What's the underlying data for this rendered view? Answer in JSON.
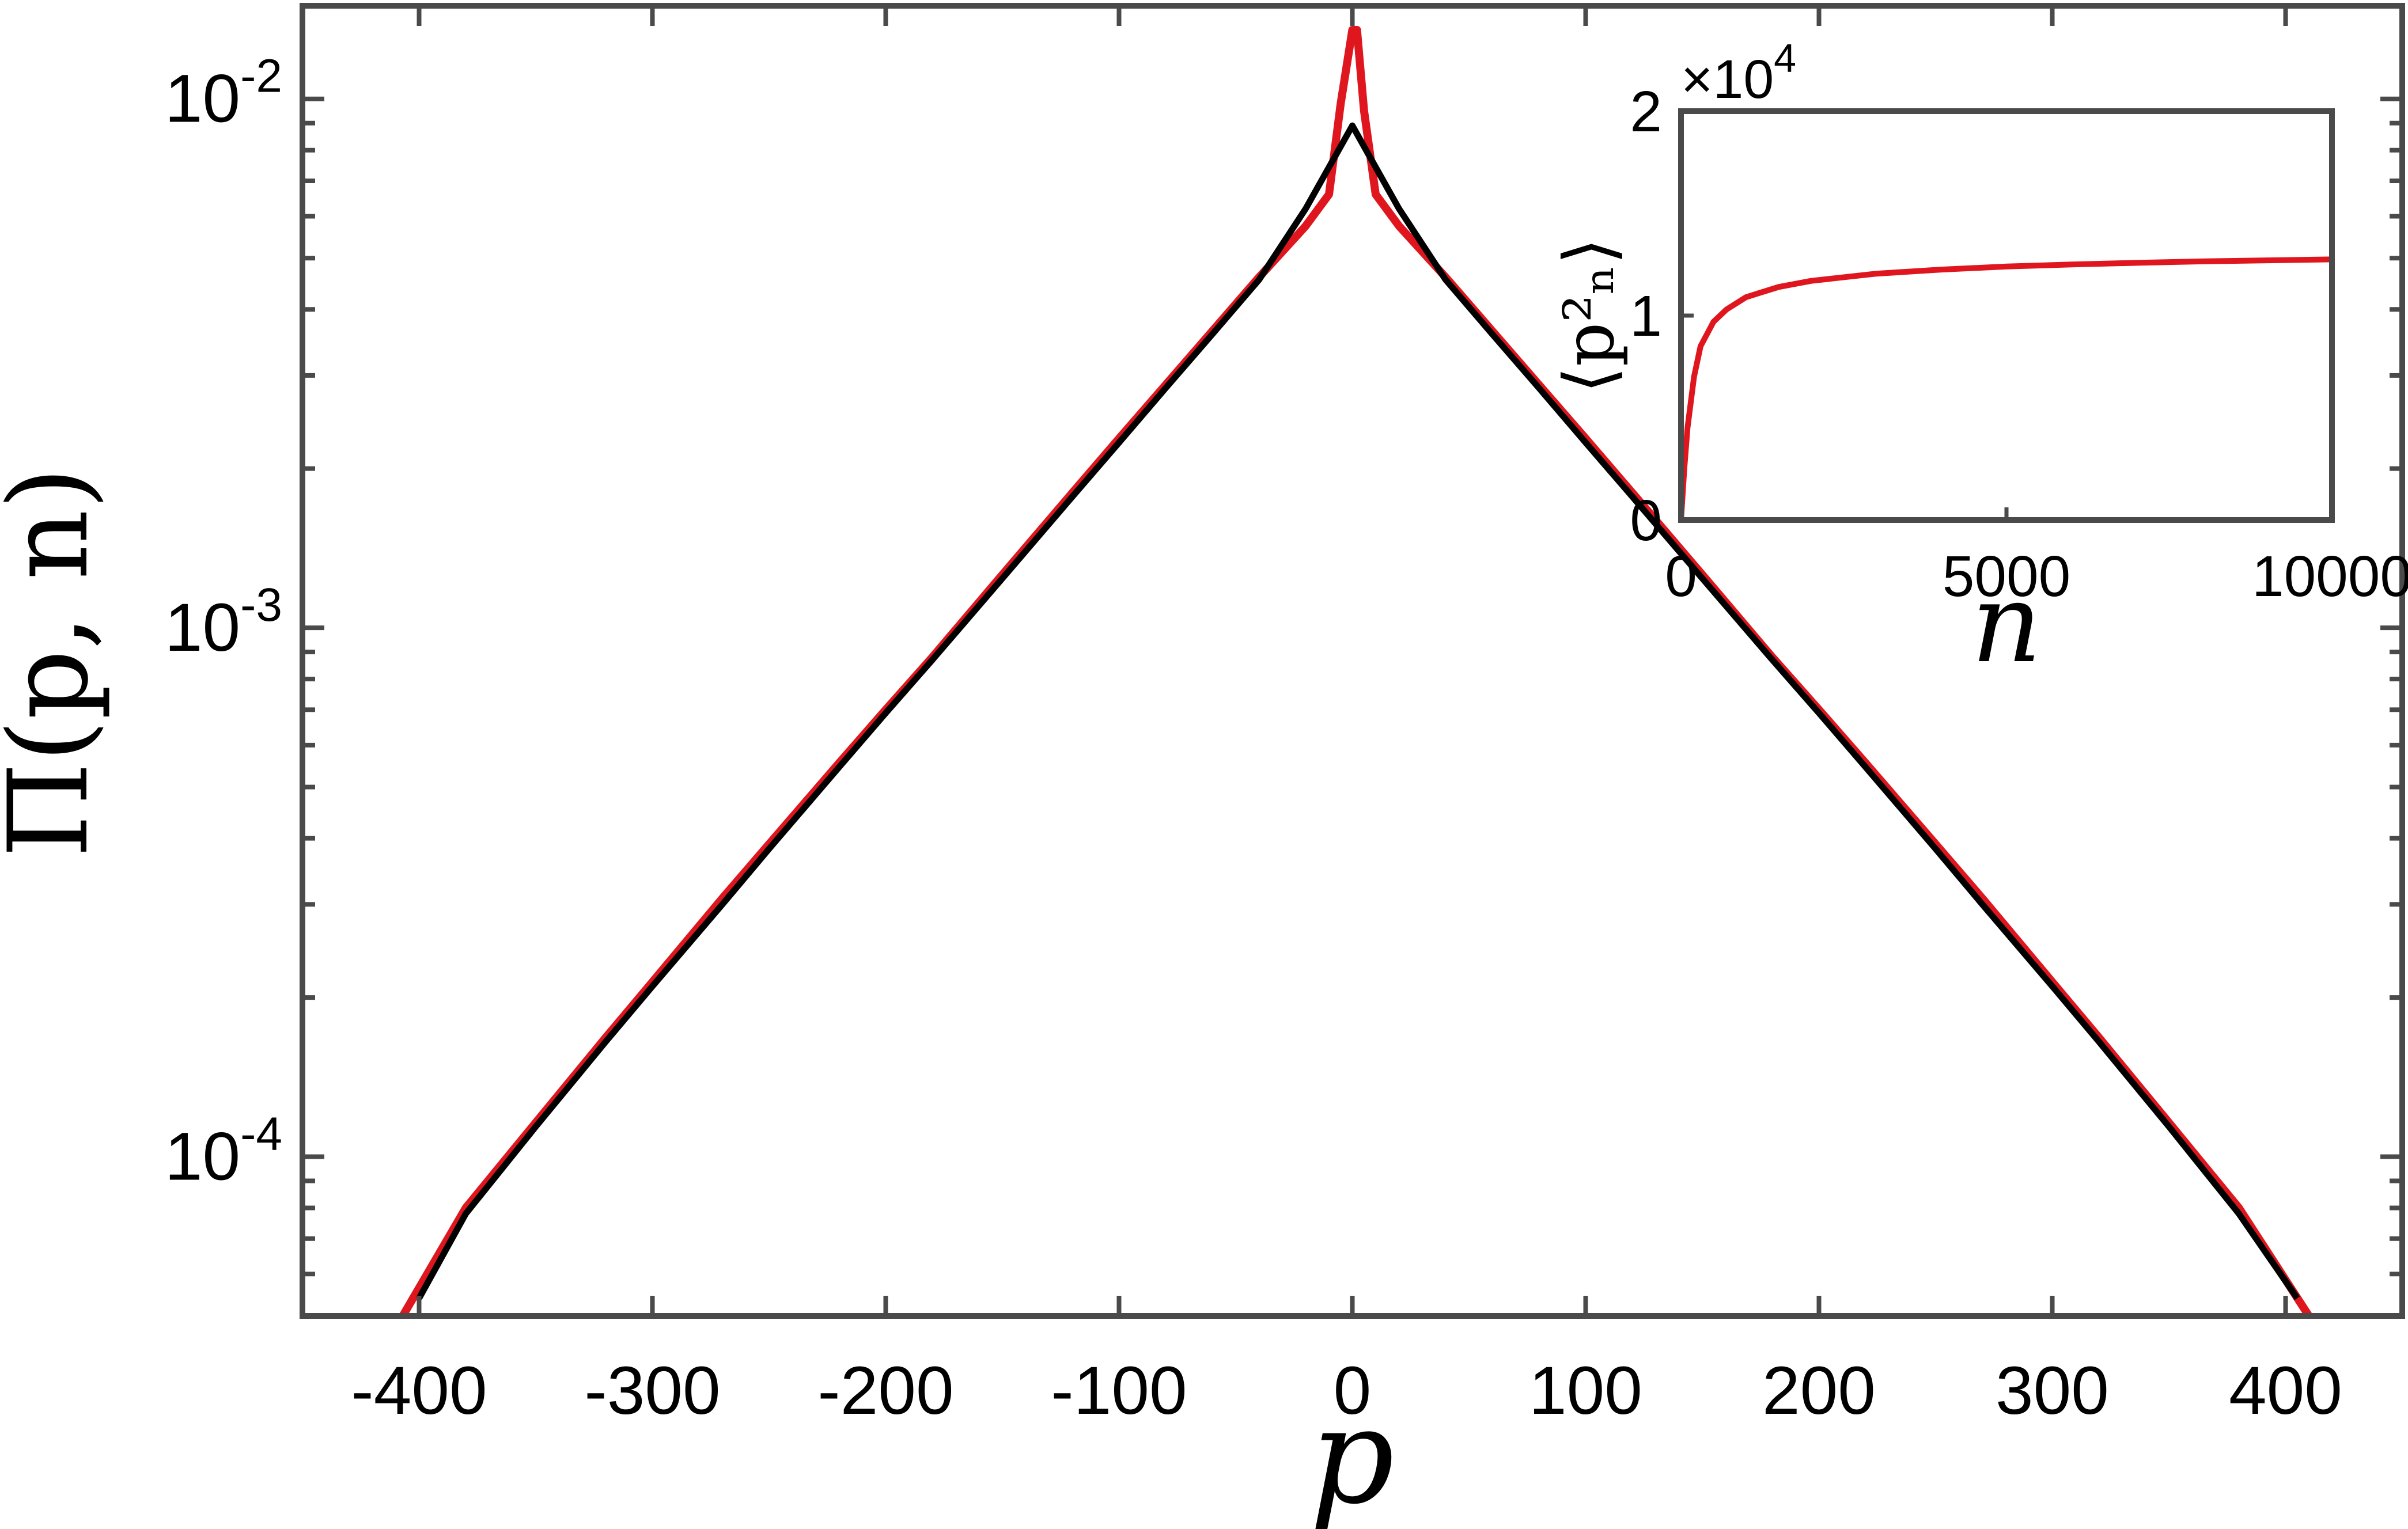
{
  "colors": {
    "data_series": "#e0161f",
    "fit_series": "#000000",
    "axes": "#4a4a4a"
  },
  "chart_data": [
    {
      "type": "line",
      "xlabel": "p",
      "ylabel": "Π(p, n)",
      "xlim": [
        -450,
        450
      ],
      "ylim": [
        5e-05,
        0.015
      ],
      "yscale": "log",
      "grid": false,
      "xticks": [
        -400,
        -300,
        -200,
        -100,
        0,
        100,
        200,
        300,
        400
      ],
      "xtick_labels": [
        "-400",
        "-300",
        "-200",
        "-100",
        "0",
        "100",
        "200",
        "300",
        "400"
      ],
      "ytick_labels": [
        {
          "base": "10",
          "exp": "-2",
          "value": 0.01
        },
        {
          "base": "10",
          "exp": "-3",
          "value": 0.001
        },
        {
          "base": "10",
          "exp": "-4",
          "value": 0.0001
        }
      ],
      "series": [
        {
          "color": "#e0161f",
          "x": [
            -407,
            -380,
            -350,
            -320,
            -300,
            -270,
            -250,
            -220,
            -200,
            -180,
            -150,
            -120,
            -100,
            -80,
            -60,
            -40,
            -20,
            -10,
            -5,
            0,
            2,
            5,
            10,
            20,
            40,
            60,
            80,
            100,
            120,
            150,
            180,
            200,
            220,
            250,
            270,
            300,
            320,
            350,
            380,
            410
          ],
          "y": [
            5e-05,
            8e-05,
            0.000116,
            0.000168,
            0.000214,
            0.000308,
            0.00039,
            0.000555,
            0.0007,
            0.00088,
            0.00126,
            0.0018,
            0.00228,
            0.00288,
            0.00364,
            0.0046,
            0.00575,
            0.0066,
            0.0098,
            0.0135,
            0.0135,
            0.0095,
            0.0066,
            0.00575,
            0.0046,
            0.00364,
            0.00288,
            0.00228,
            0.0018,
            0.00126,
            0.00088,
            0.0007,
            0.000555,
            0.00039,
            0.000308,
            0.000214,
            0.000168,
            0.000116,
            8e-05,
            5e-05
          ]
        },
        {
          "color": "#000000",
          "x": [
            -400,
            -380,
            -350,
            -320,
            -300,
            -270,
            -250,
            -220,
            -200,
            -180,
            -150,
            -120,
            -100,
            -80,
            -60,
            -40,
            -20,
            0,
            20,
            40,
            60,
            80,
            100,
            120,
            150,
            180,
            200,
            220,
            250,
            270,
            300,
            320,
            350,
            380,
            405
          ],
          "y": [
            5.4e-05,
            7.8e-05,
            0.000114,
            0.000165,
            0.00021,
            0.0003,
            0.000382,
            0.000545,
            0.00069,
            0.00087,
            0.00124,
            0.00177,
            0.00224,
            0.00284,
            0.00359,
            0.00455,
            0.0062,
            0.0089,
            0.0062,
            0.00455,
            0.00359,
            0.00284,
            0.00224,
            0.00177,
            0.00124,
            0.00087,
            0.00069,
            0.000545,
            0.000382,
            0.0003,
            0.00021,
            0.000165,
            0.000114,
            7.8e-05,
            5.4e-05
          ]
        }
      ]
    },
    {
      "type": "line",
      "xlabel": "n",
      "ylabel": "⟨p²ₙ⟩",
      "xlim": [
        0,
        10000
      ],
      "ylim": [
        0,
        20000
      ],
      "grid": false,
      "xticks": [
        0,
        5000,
        10000
      ],
      "xtick_labels": [
        "0",
        "5000",
        "10000"
      ],
      "yticks": [
        0,
        10000,
        20000
      ],
      "ytick_labels": [
        "0",
        "1",
        "2"
      ],
      "y_multiplier": {
        "base": "×10",
        "exp": "4"
      },
      "series": [
        {
          "color": "#e0161f",
          "x": [
            0,
            50,
            100,
            200,
            300,
            500,
            700,
            1000,
            1500,
            2000,
            3000,
            4000,
            5000,
            6000,
            7000,
            8000,
            9000,
            10000
          ],
          "y": [
            0,
            2500,
            4500,
            7000,
            8500,
            9700,
            10300,
            10900,
            11400,
            11700,
            12050,
            12250,
            12400,
            12500,
            12580,
            12650,
            12700,
            12750
          ]
        }
      ]
    }
  ]
}
